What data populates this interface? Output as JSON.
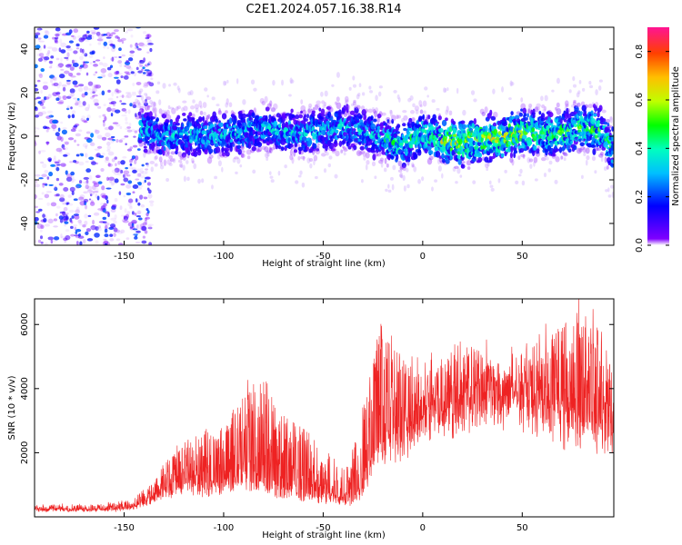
{
  "title": "C2E1.2024.057.16.38.R14",
  "chart_data": [
    {
      "type": "heatmap",
      "xlabel": "Height of straight line (km)",
      "ylabel": "Frequency (Hz)",
      "xlim": [
        -195,
        96
      ],
      "ylim": [
        -50,
        50
      ],
      "x_ticks": [
        -150,
        -100,
        -50,
        0,
        50
      ],
      "y_ticks": [
        -40,
        -20,
        0,
        20,
        40
      ],
      "colorbar": {
        "label": "Normalized spectral amplitude",
        "range": [
          0.0,
          0.9
        ],
        "ticks": [
          0.0,
          0.2,
          0.4,
          0.6,
          0.8
        ],
        "colors": [
          "#ffffff",
          "#7f00ff",
          "#0000ff",
          "#00bfff",
          "#00ffbf",
          "#00ff00",
          "#bfff00",
          "#ffbf00",
          "#ff4000",
          "#ff1493"
        ]
      },
      "band_center_hz": [
        [
          -140,
          3
        ],
        [
          -130,
          0
        ],
        [
          -120,
          1
        ],
        [
          -110,
          0
        ],
        [
          -100,
          1
        ],
        [
          -90,
          2
        ],
        [
          -80,
          4
        ],
        [
          -70,
          2
        ],
        [
          -60,
          1
        ],
        [
          -50,
          3
        ],
        [
          -40,
          5
        ],
        [
          -30,
          2
        ],
        [
          -20,
          -1
        ],
        [
          -10,
          -4
        ],
        [
          0,
          1
        ],
        [
          10,
          -2
        ],
        [
          20,
          -3
        ],
        [
          30,
          -1
        ],
        [
          40,
          -1
        ],
        [
          50,
          2
        ],
        [
          60,
          1
        ],
        [
          70,
          2
        ],
        [
          80,
          4
        ],
        [
          90,
          2
        ],
        [
          95,
          -6
        ]
      ],
      "noise_region_km": [
        -195,
        -140
      ],
      "grid": false
    },
    {
      "type": "line",
      "xlabel": "Height of straight line (km)",
      "ylabel": "SNR (10 * v/v)",
      "xlim": [
        -195,
        96
      ],
      "ylim": [
        0,
        6800
      ],
      "x_ticks": [
        -150,
        -100,
        -50,
        0,
        50
      ],
      "y_ticks": [
        2000,
        4000,
        6000
      ],
      "color": "#ee2222",
      "envelope": {
        "x": [
          -195,
          -160,
          -145,
          -135,
          -130,
          -120,
          -110,
          -100,
          -90,
          -80,
          -70,
          -60,
          -50,
          -40,
          -35,
          -30,
          -25,
          -20,
          -15,
          -10,
          -5,
          0,
          10,
          20,
          30,
          40,
          50,
          60,
          70,
          80,
          90,
          96
        ],
        "base": [
          200,
          200,
          250,
          500,
          700,
          900,
          800,
          900,
          1100,
          900,
          700,
          600,
          500,
          450,
          400,
          800,
          1500,
          2000,
          2100,
          2300,
          2500,
          2900,
          3100,
          3300,
          3500,
          3600,
          3500,
          3100,
          2800,
          2600,
          2500,
          2400
        ],
        "peak": [
          350,
          400,
          600,
          1100,
          1600,
          2400,
          2600,
          2800,
          4000,
          4500,
          3200,
          2800,
          2200,
          1600,
          2200,
          3500,
          5000,
          6300,
          5600,
          5200,
          4600,
          4400,
          4800,
          5600,
          5200,
          4400,
          4800,
          5400,
          6000,
          6600,
          5800,
          4400
        ]
      },
      "grid": false
    }
  ]
}
